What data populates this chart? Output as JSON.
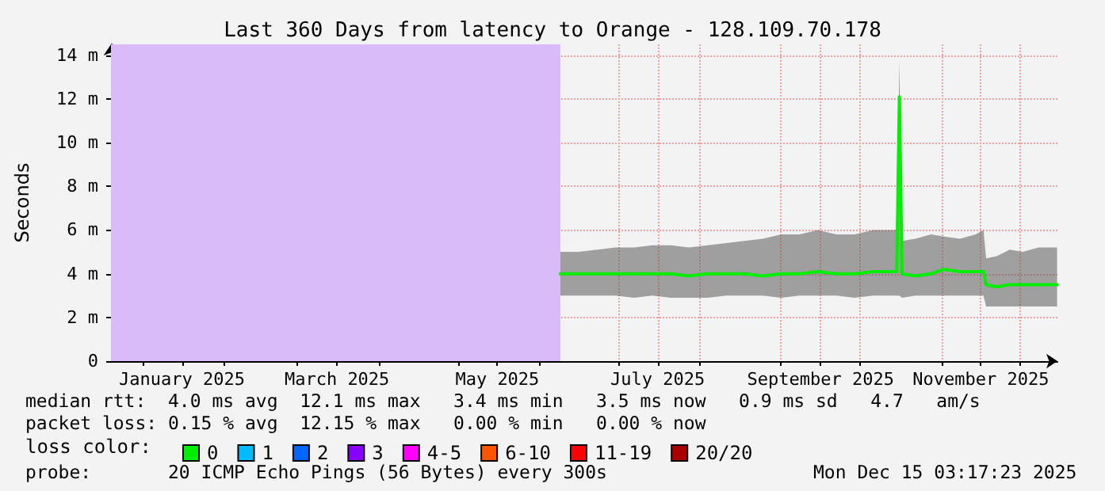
{
  "chart_data": {
    "type": "line",
    "title": "Last 360 Days from latency to Orange - 128.109.70.178",
    "ylabel": "Seconds",
    "legend_title": "loss color:",
    "legend": "bottom left",
    "grid": true,
    "marker": "none",
    "line_style": "solid",
    "xlim": [
      "2024-12-20",
      "2025-12-15T03:17"
    ],
    "xticks": [
      {
        "value": "2025-01-01",
        "label": null
      },
      {
        "value": "2025-01-16",
        "label": "January 2025"
      },
      {
        "value": "2025-02-01",
        "label": null
      },
      {
        "value": "2025-03-01",
        "label": null
      },
      {
        "value": "2025-03-16",
        "label": "March 2025"
      },
      {
        "value": "2025-04-01",
        "label": null
      },
      {
        "value": "2025-05-01",
        "label": null
      },
      {
        "value": "2025-05-16",
        "label": "May 2025"
      },
      {
        "value": "2025-06-01",
        "label": null
      },
      {
        "value": "2025-07-01",
        "label": null
      },
      {
        "value": "2025-07-16",
        "label": "July 2025"
      },
      {
        "value": "2025-08-01",
        "label": null
      },
      {
        "value": "2025-09-01",
        "label": null
      },
      {
        "value": "2025-09-16",
        "label": "September 2025"
      },
      {
        "value": "2025-10-01",
        "label": null
      },
      {
        "value": "2025-11-01",
        "label": null
      },
      {
        "value": "2025-11-16",
        "label": "November 2025"
      },
      {
        "value": "2025-12-01",
        "label": null
      }
    ],
    "ylim": [
      0,
      14.5
    ],
    "yticks": [
      {
        "value": 0,
        "label": "0"
      },
      {
        "value": 2,
        "label": "2 m"
      },
      {
        "value": 4,
        "label": "4 m"
      },
      {
        "value": 6,
        "label": "6 m"
      },
      {
        "value": 8,
        "label": "8 m"
      },
      {
        "value": 10,
        "label": "10 m"
      },
      {
        "value": 12,
        "label": "12 m"
      },
      {
        "value": 14,
        "label": "14 m"
      }
    ],
    "bands": [
      {
        "axis": "x",
        "from": "2024-12-20",
        "to": "2025-06-09",
        "color": "#d8bbf8"
      }
    ],
    "series": [
      {
        "name": "0",
        "color": "#00ee00",
        "x": [
          "2025-06-09",
          "2025-06-16",
          "2025-06-23",
          "2025-06-30",
          "2025-07-07",
          "2025-07-14",
          "2025-07-21",
          "2025-07-28",
          "2025-08-04",
          "2025-08-11",
          "2025-08-18",
          "2025-08-25",
          "2025-09-01",
          "2025-09-08",
          "2025-09-15",
          "2025-09-22",
          "2025-09-29",
          "2025-10-06",
          "2025-10-15",
          "2025-10-16",
          "2025-10-17",
          "2025-10-22",
          "2025-10-28",
          "2025-11-02",
          "2025-11-08",
          "2025-11-14",
          "2025-11-17",
          "2025-11-18",
          "2025-11-22",
          "2025-11-27",
          "2025-12-02",
          "2025-12-08",
          "2025-12-15"
        ],
        "values": [
          4.0,
          4.0,
          4.0,
          4.0,
          4.0,
          4.0,
          4.0,
          3.9,
          4.0,
          4.0,
          4.0,
          3.9,
          4.0,
          4.0,
          4.1,
          4.0,
          4.0,
          4.1,
          4.1,
          12.1,
          4.0,
          3.9,
          4.0,
          4.2,
          4.1,
          4.1,
          4.1,
          3.5,
          3.4,
          3.5,
          3.5,
          3.5,
          3.5
        ],
        "lower": [
          3.0,
          3.0,
          3.0,
          3.0,
          2.9,
          3.0,
          2.9,
          2.9,
          2.9,
          3.0,
          3.0,
          3.0,
          2.9,
          3.0,
          3.0,
          3.0,
          2.9,
          3.0,
          3.0,
          3.0,
          2.9,
          3.0,
          3.0,
          3.0,
          3.0,
          3.0,
          3.0,
          2.5,
          2.5,
          2.5,
          2.5,
          2.5,
          2.5
        ],
        "upper": [
          5.0,
          5.0,
          5.1,
          5.2,
          5.2,
          5.3,
          5.3,
          5.2,
          5.3,
          5.4,
          5.5,
          5.6,
          5.8,
          5.8,
          6.0,
          5.8,
          5.8,
          6.0,
          6.0,
          13.7,
          5.5,
          5.6,
          5.8,
          5.7,
          5.6,
          5.8,
          6.0,
          4.7,
          4.8,
          5.1,
          5.0,
          5.2,
          5.2
        ]
      },
      {
        "name": "1",
        "color": "#00bbff"
      },
      {
        "name": "2",
        "color": "#0066ff"
      },
      {
        "name": "3",
        "color": "#8800ff"
      },
      {
        "name": "4-5",
        "color": "#ff00ff"
      },
      {
        "name": "6-10",
        "color": "#ff5500"
      },
      {
        "name": "11-19",
        "color": "#ff0000"
      },
      {
        "name": "20/20",
        "color": "#aa0000"
      }
    ],
    "annotations": [
      "median rtt:  4.0 ms avg  12.1 ms max   3.4 ms min   3.5 ms now   0.9 ms sd   4.7   am/s",
      "packet loss: 0.15 % avg  12.15 % max   0.00 % min   0.00 % now",
      "probe:       20 ICMP Echo Pings (56 Bytes) every 300s",
      "Mon Dec 15 03:17:23 2025"
    ]
  }
}
